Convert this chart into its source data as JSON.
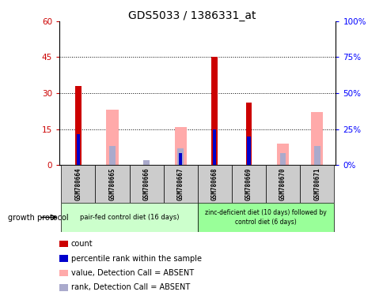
{
  "title": "GDS5033 / 1386331_at",
  "samples": [
    "GSM780664",
    "GSM780665",
    "GSM780666",
    "GSM780667",
    "GSM780668",
    "GSM780669",
    "GSM780670",
    "GSM780671"
  ],
  "count": [
    33,
    0,
    0,
    0,
    45,
    26,
    0,
    0
  ],
  "percentile_rank": [
    13,
    0,
    0,
    5,
    15,
    12,
    0,
    0
  ],
  "value_absent": [
    0,
    23,
    0,
    16,
    0,
    0,
    9,
    22
  ],
  "rank_absent": [
    0,
    8,
    2,
    7,
    0,
    8,
    5,
    8
  ],
  "ylim_left": [
    0,
    60
  ],
  "ylim_right": [
    0,
    100
  ],
  "yticks_left": [
    0,
    15,
    30,
    45,
    60
  ],
  "yticks_right": [
    0,
    25,
    50,
    75,
    100
  ],
  "ytick_labels_left": [
    "0",
    "15",
    "30",
    "45",
    "60"
  ],
  "ytick_labels_right": [
    "0%",
    "25%",
    "50%",
    "75%",
    "100%"
  ],
  "group1_label": "pair-fed control diet (16 days)",
  "group2_label": "zinc-deficient diet (10 days) followed by\ncontrol diet (6 days)",
  "group1_indices": [
    0,
    1,
    2,
    3
  ],
  "group2_indices": [
    4,
    5,
    6,
    7
  ],
  "growth_protocol_label": "growth protocol",
  "color_count": "#cc0000",
  "color_rank": "#0000cc",
  "color_value_absent": "#ffaaaa",
  "color_rank_absent": "#aaaacc",
  "color_group1_bg": "#ccffcc",
  "color_group2_bg": "#99ff99",
  "color_sample_bg": "#cccccc",
  "legend_items": [
    {
      "label": "count",
      "color": "#cc0000"
    },
    {
      "label": "percentile rank within the sample",
      "color": "#0000cc"
    },
    {
      "label": "value, Detection Call = ABSENT",
      "color": "#ffaaaa"
    },
    {
      "label": "rank, Detection Call = ABSENT",
      "color": "#aaaacc"
    }
  ]
}
